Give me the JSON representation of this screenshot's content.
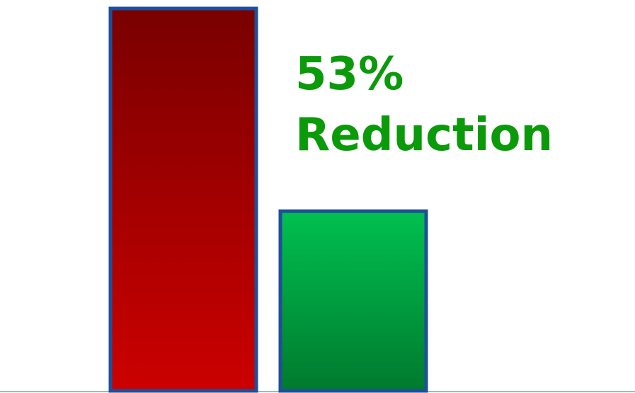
{
  "chart_data": {
    "type": "bar",
    "categories": [
      "",
      ""
    ],
    "values": [
      100,
      47
    ],
    "ylim": [
      0,
      100
    ],
    "grid": false,
    "legend": "none",
    "annotation": {
      "line1": "53%",
      "line2": "Reduction"
    }
  },
  "colors": {
    "bar_before_top": "#790000",
    "bar_before_bottom": "#cc0000",
    "bar_after_top": "#00c050",
    "bar_after_bottom": "#007a2e",
    "bar_border": "#1f4e9a",
    "annotation_text": "#0a9a0a",
    "baseline": "#9bbfae"
  }
}
